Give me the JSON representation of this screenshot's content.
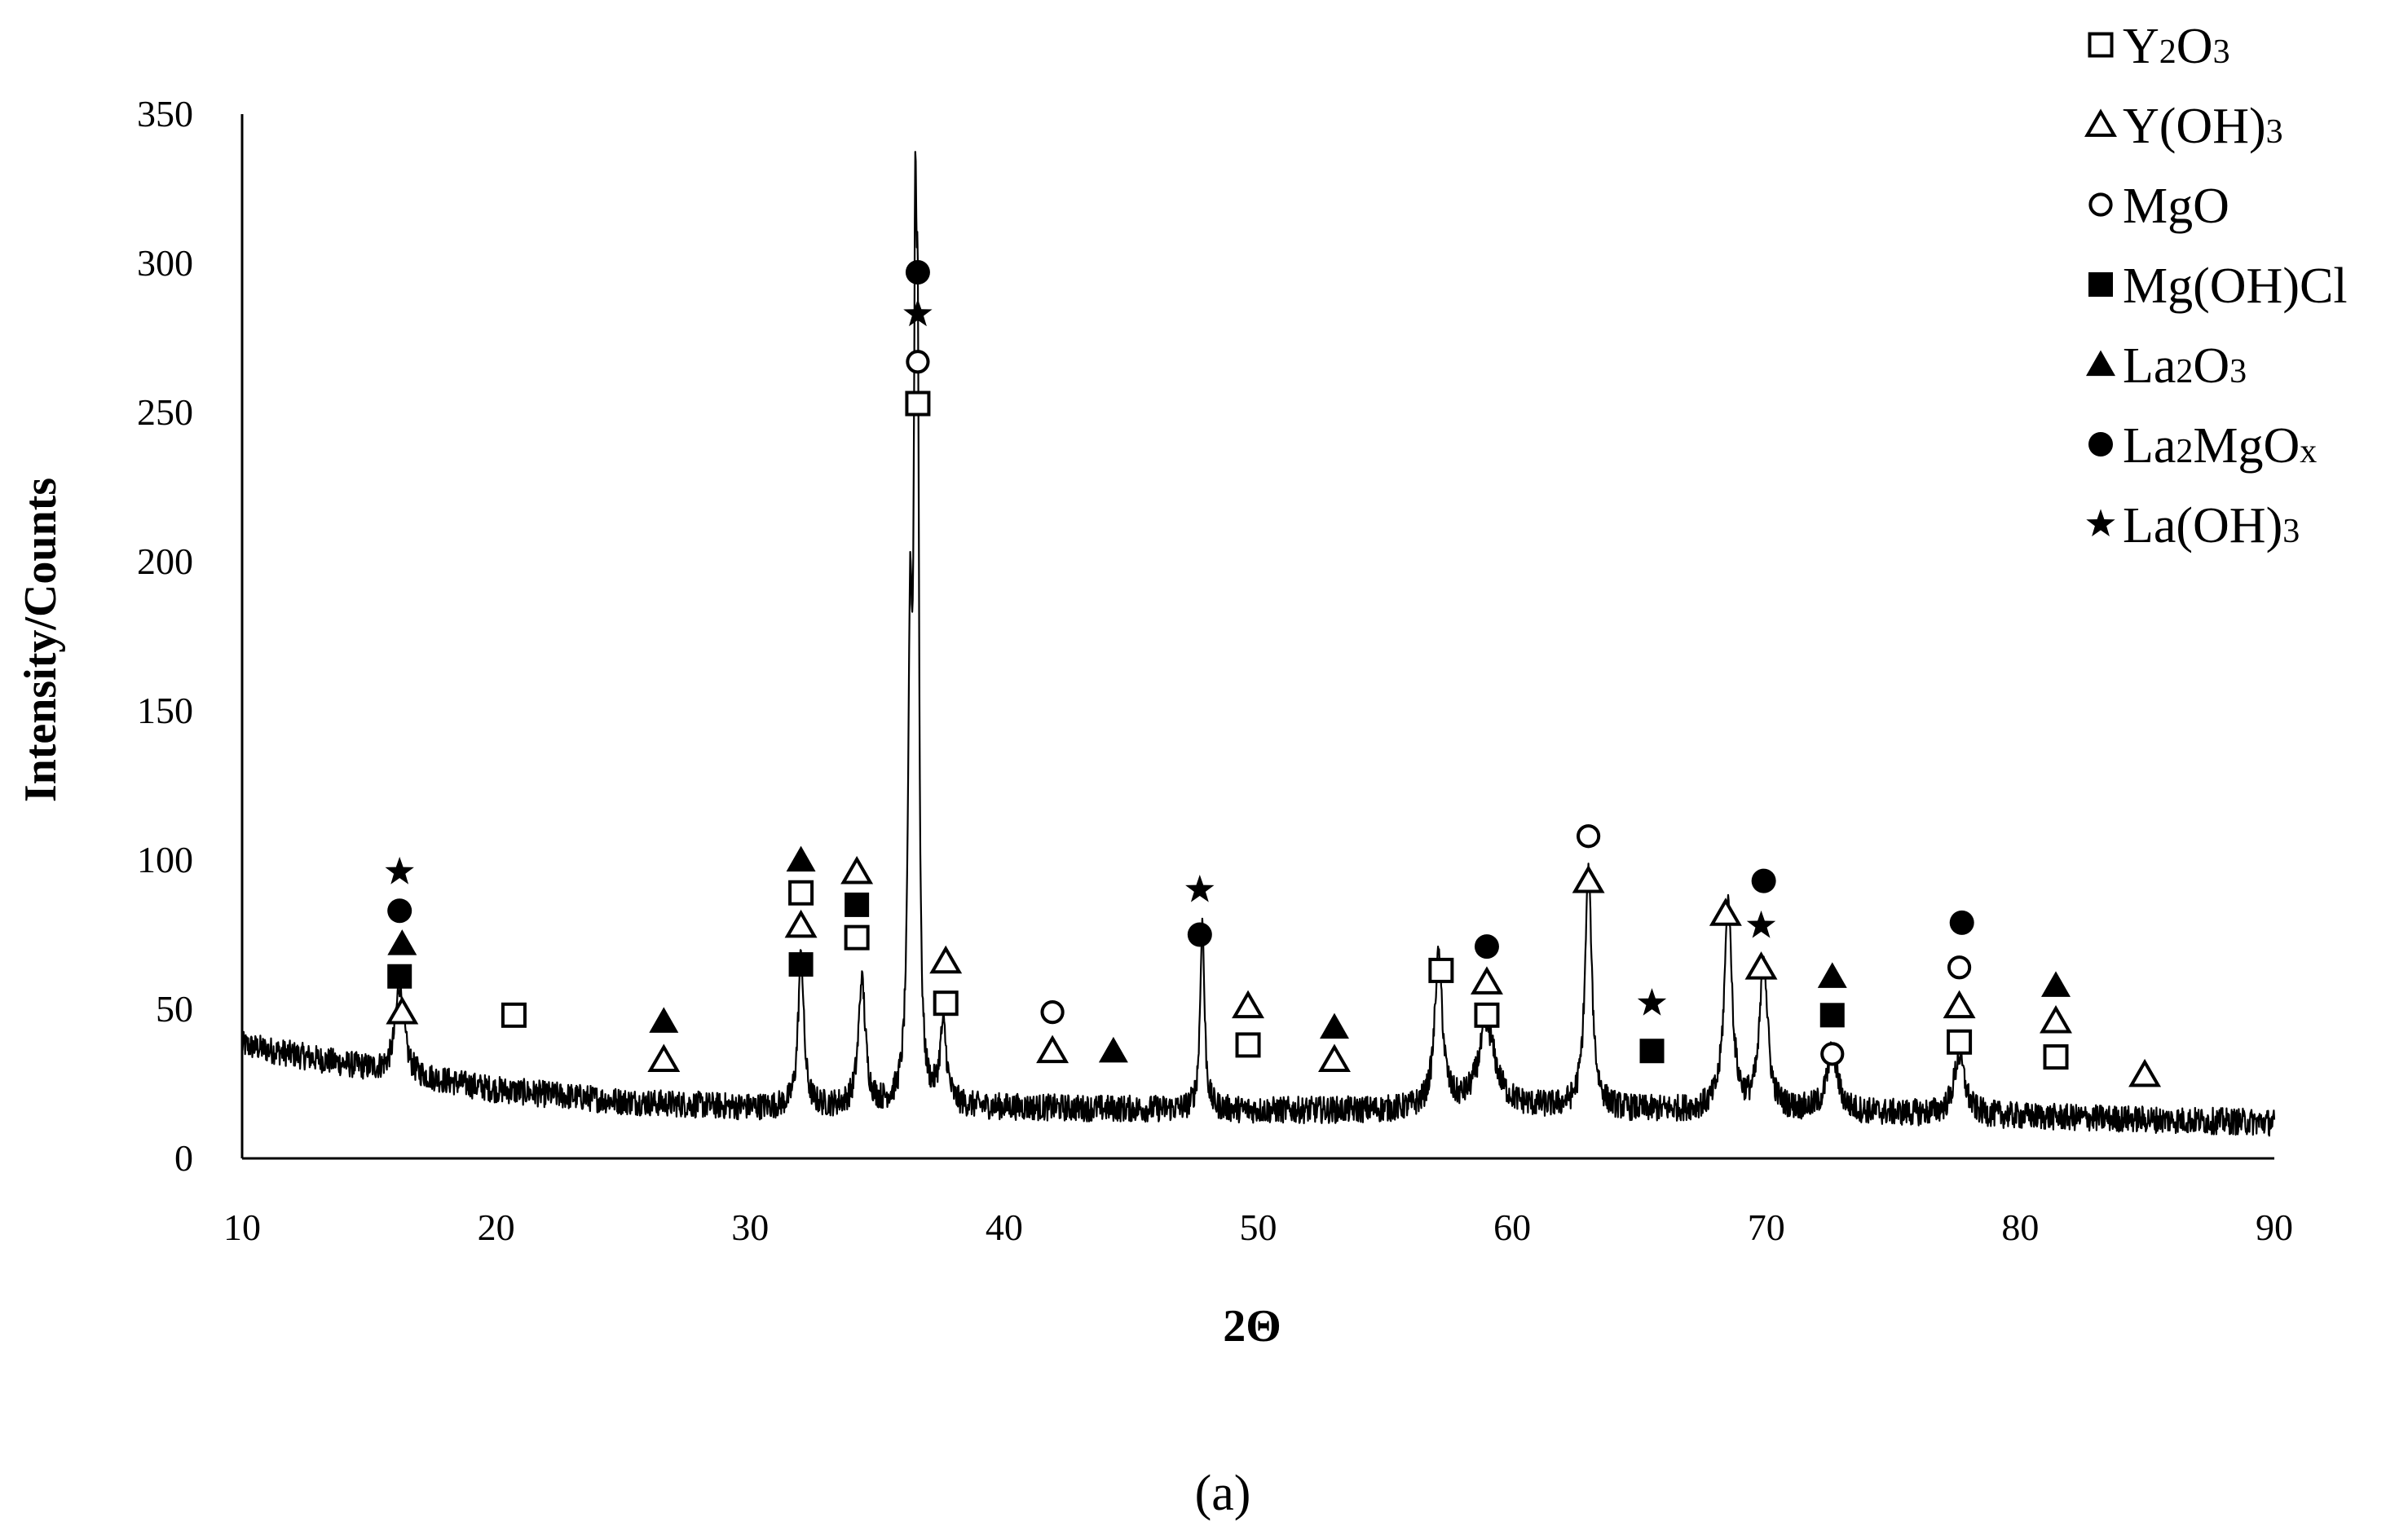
{
  "figure": {
    "caption": "(a)"
  },
  "chart_data": {
    "type": "line",
    "xlabel": "2Θ",
    "ylabel": "Intensity/Counts",
    "xlim": [
      10,
      90
    ],
    "ylim": [
      0,
      350
    ],
    "xticks": [
      10,
      20,
      30,
      40,
      50,
      60,
      70,
      80,
      90
    ],
    "yticks": [
      0,
      50,
      100,
      150,
      200,
      250,
      300,
      350
    ],
    "grid": false,
    "legend_position": "top-right",
    "legend": [
      {
        "key": "Y2O3",
        "marker": "open-square",
        "text": "Y",
        "sub1": "2",
        "mid": "O",
        "sub2": "3",
        "end": ""
      },
      {
        "key": "YOH3",
        "marker": "open-triangle",
        "text": "Y(OH)",
        "sub1": "3",
        "mid": "",
        "sub2": "",
        "end": ""
      },
      {
        "key": "MgO",
        "marker": "open-circle",
        "text": "MgO",
        "sub1": "",
        "mid": "",
        "sub2": "",
        "end": ""
      },
      {
        "key": "MgOHCl",
        "marker": "filled-square",
        "text": "Mg(OH)Cl",
        "sub1": "",
        "mid": "",
        "sub2": "",
        "end": ""
      },
      {
        "key": "La2O3",
        "marker": "filled-triangle",
        "text": "La",
        "sub1": "2",
        "mid": "O",
        "sub2": "3",
        "end": ""
      },
      {
        "key": "La2MgOx",
        "marker": "filled-circle",
        "text": "La",
        "sub1": "2",
        "mid": "MgO",
        "sub2": "x",
        "end": ""
      },
      {
        "key": "LaOH3",
        "marker": "star",
        "text": "La(OH)",
        "sub1": "3",
        "mid": "",
        "sub2": "",
        "end": ""
      }
    ],
    "background": [
      [
        10,
        38
      ],
      [
        15,
        30
      ],
      [
        20,
        23
      ],
      [
        25,
        19
      ],
      [
        30,
        17
      ],
      [
        40,
        17
      ],
      [
        50,
        16
      ],
      [
        55,
        16
      ],
      [
        60,
        17
      ],
      [
        65,
        16
      ],
      [
        70,
        16
      ],
      [
        80,
        14
      ],
      [
        90,
        12
      ]
    ],
    "peaks": [
      {
        "x": 16.2,
        "y": 30,
        "w": 0.2
      },
      {
        "x": 32.0,
        "y": 52,
        "w": 0.13
      },
      {
        "x": 34.4,
        "y": 43,
        "w": 0.16
      },
      {
        "x": 36.3,
        "y": 150,
        "w": 0.1
      },
      {
        "x": 36.5,
        "y": 240,
        "w": 0.07
      },
      {
        "x": 36.6,
        "y": 190,
        "w": 0.06
      },
      {
        "x": 37.6,
        "y": 26,
        "w": 0.16
      },
      {
        "x": 47.8,
        "y": 63,
        "w": 0.1
      },
      {
        "x": 57.1,
        "y": 52,
        "w": 0.18
      },
      {
        "x": 59.0,
        "y": 27,
        "w": 0.4
      },
      {
        "x": 63.0,
        "y": 80,
        "w": 0.16
      },
      {
        "x": 68.5,
        "y": 70,
        "w": 0.18
      },
      {
        "x": 69.9,
        "y": 51,
        "w": 0.18
      },
      {
        "x": 72.6,
        "y": 20,
        "w": 0.25
      },
      {
        "x": 77.6,
        "y": 20,
        "w": 0.25
      }
    ],
    "noise_amplitude": 4.5,
    "annotations": [
      {
        "x": 16.3,
        "y": 49,
        "marker": "open-triangle"
      },
      {
        "x": 16.2,
        "y": 61,
        "marker": "filled-square"
      },
      {
        "x": 16.3,
        "y": 72,
        "marker": "filled-triangle"
      },
      {
        "x": 16.2,
        "y": 83,
        "marker": "filled-circle"
      },
      {
        "x": 16.2,
        "y": 96,
        "marker": "star"
      },
      {
        "x": 20.7,
        "y": 48,
        "marker": "open-square"
      },
      {
        "x": 26.6,
        "y": 33,
        "marker": "open-triangle"
      },
      {
        "x": 26.6,
        "y": 46,
        "marker": "filled-triangle"
      },
      {
        "x": 32.0,
        "y": 65,
        "marker": "filled-square"
      },
      {
        "x": 32.0,
        "y": 78,
        "marker": "open-triangle"
      },
      {
        "x": 32.0,
        "y": 89,
        "marker": "open-square"
      },
      {
        "x": 32.0,
        "y": 100,
        "marker": "filled-triangle"
      },
      {
        "x": 34.2,
        "y": 74,
        "marker": "open-square"
      },
      {
        "x": 34.2,
        "y": 85,
        "marker": "filled-square"
      },
      {
        "x": 34.2,
        "y": 96,
        "marker": "open-triangle"
      },
      {
        "x": 36.6,
        "y": 253,
        "marker": "open-square"
      },
      {
        "x": 36.6,
        "y": 267,
        "marker": "open-circle"
      },
      {
        "x": 36.6,
        "y": 283,
        "marker": "star"
      },
      {
        "x": 36.6,
        "y": 297,
        "marker": "filled-circle"
      },
      {
        "x": 37.7,
        "y": 52,
        "marker": "open-square"
      },
      {
        "x": 37.7,
        "y": 66,
        "marker": "open-triangle"
      },
      {
        "x": 41.9,
        "y": 36,
        "marker": "open-triangle"
      },
      {
        "x": 41.9,
        "y": 49,
        "marker": "open-circle"
      },
      {
        "x": 44.3,
        "y": 36,
        "marker": "filled-triangle"
      },
      {
        "x": 47.7,
        "y": 75,
        "marker": "filled-circle"
      },
      {
        "x": 47.7,
        "y": 90,
        "marker": "star"
      },
      {
        "x": 49.6,
        "y": 38,
        "marker": "open-square"
      },
      {
        "x": 49.6,
        "y": 51,
        "marker": "open-triangle"
      },
      {
        "x": 53.0,
        "y": 33,
        "marker": "open-triangle"
      },
      {
        "x": 53.0,
        "y": 44,
        "marker": "filled-triangle"
      },
      {
        "x": 57.2,
        "y": 63,
        "marker": "open-square"
      },
      {
        "x": 59.0,
        "y": 48,
        "marker": "open-square"
      },
      {
        "x": 59.0,
        "y": 59,
        "marker": "open-triangle"
      },
      {
        "x": 59.0,
        "y": 71,
        "marker": "filled-circle"
      },
      {
        "x": 63.0,
        "y": 93,
        "marker": "open-triangle"
      },
      {
        "x": 63.0,
        "y": 108,
        "marker": "open-circle"
      },
      {
        "x": 65.5,
        "y": 36,
        "marker": "filled-square"
      },
      {
        "x": 65.5,
        "y": 52,
        "marker": "star"
      },
      {
        "x": 68.4,
        "y": 82,
        "marker": "open-triangle"
      },
      {
        "x": 69.8,
        "y": 64,
        "marker": "open-triangle"
      },
      {
        "x": 69.8,
        "y": 78,
        "marker": "star"
      },
      {
        "x": 69.9,
        "y": 93,
        "marker": "filled-circle"
      },
      {
        "x": 72.6,
        "y": 35,
        "marker": "open-circle"
      },
      {
        "x": 72.6,
        "y": 48,
        "marker": "filled-square"
      },
      {
        "x": 72.6,
        "y": 61,
        "marker": "filled-triangle"
      },
      {
        "x": 77.6,
        "y": 39,
        "marker": "open-square"
      },
      {
        "x": 77.6,
        "y": 51,
        "marker": "open-triangle"
      },
      {
        "x": 77.6,
        "y": 64,
        "marker": "open-circle"
      },
      {
        "x": 77.7,
        "y": 79,
        "marker": "filled-circle"
      },
      {
        "x": 81.4,
        "y": 34,
        "marker": "open-square"
      },
      {
        "x": 81.4,
        "y": 46,
        "marker": "open-triangle"
      },
      {
        "x": 81.4,
        "y": 58,
        "marker": "filled-triangle"
      },
      {
        "x": 84.9,
        "y": 28,
        "marker": "open-triangle"
      }
    ]
  }
}
